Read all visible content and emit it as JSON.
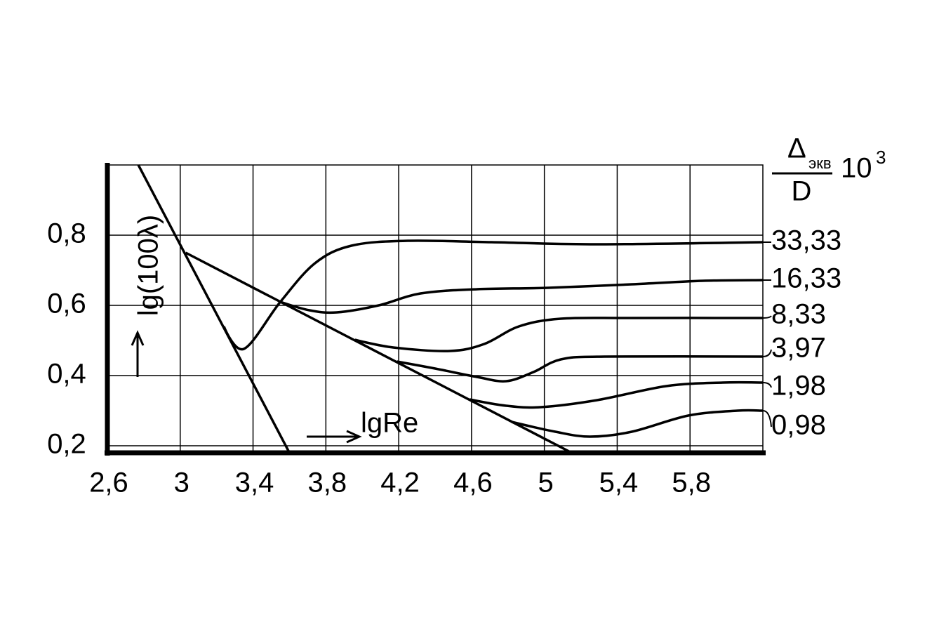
{
  "chart_data": {
    "type": "line",
    "y_label": "lg(100λ)",
    "x_label": "lgRe",
    "legend_title": {
      "numerator": "Δ",
      "subscript": "экв",
      "denominator": "D",
      "multiplier": "10",
      "exponent": "3"
    },
    "xlim": [
      2.6,
      6.2
    ],
    "ylim": [
      0.18,
      1.0
    ],
    "xticks": [
      {
        "value": 2.6,
        "label": "2,6"
      },
      3,
      {
        "value": 3.4,
        "label": "3,4"
      },
      {
        "value": 3.8,
        "label": "3,8"
      },
      {
        "value": 4.2,
        "label": "4,2"
      },
      {
        "value": 4.6,
        "label": "4,6"
      },
      5,
      {
        "value": 5.4,
        "label": "5,4"
      },
      {
        "value": 5.8,
        "label": "5,8"
      }
    ],
    "yticks": [
      {
        "value": 0.2,
        "label": "0,2"
      },
      {
        "value": 0.4,
        "label": "0,4"
      },
      {
        "value": 0.6,
        "label": "0,6"
      },
      {
        "value": 0.8,
        "label": "0,8"
      }
    ],
    "grid": true,
    "series": [
      {
        "color": "#000000",
        "x": [
          2.77,
          3.6
        ],
        "values": [
          1.0,
          0.18
        ]
      },
      {
        "color": "#000000",
        "x": [
          3.03,
          5.15
        ],
        "values": [
          0.75,
          0.18
        ]
      },
      {
        "name": "33,33",
        "color": "#000000",
        "x": [
          3.24,
          3.35,
          3.55,
          3.74,
          3.94,
          4.25,
          4.71,
          5.29,
          6.2
        ],
        "values": [
          0.54,
          0.476,
          0.61,
          0.72,
          0.77,
          0.784,
          0.78,
          0.774,
          0.78
        ]
      },
      {
        "name": "16,33",
        "color": "#000000",
        "x": [
          3.55,
          3.71,
          3.86,
          4.09,
          4.32,
          4.63,
          5.02,
          5.48,
          5.87,
          6.2
        ],
        "values": [
          0.61,
          0.586,
          0.58,
          0.6,
          0.634,
          0.646,
          0.65,
          0.66,
          0.67,
          0.672
        ]
      },
      {
        "name": "8,33",
        "color": "#000000",
        "x": [
          3.96,
          4.17,
          4.48,
          4.67,
          4.86,
          5.09,
          5.48,
          6.2
        ],
        "values": [
          0.502,
          0.48,
          0.47,
          0.49,
          0.54,
          0.562,
          0.564,
          0.564
        ]
      },
      {
        "name": "3,97",
        "color": "#000000",
        "x": [
          4.19,
          4.4,
          4.63,
          4.79,
          4.94,
          5.09,
          5.33,
          6.2
        ],
        "values": [
          0.44,
          0.42,
          0.396,
          0.384,
          0.41,
          0.446,
          0.454,
          0.454
        ]
      },
      {
        "name": "1,98",
        "color": "#000000",
        "x": [
          4.59,
          4.79,
          4.98,
          5.29,
          5.67,
          5.98,
          6.2
        ],
        "values": [
          0.332,
          0.314,
          0.31,
          0.33,
          0.37,
          0.38,
          0.38
        ]
      },
      {
        "name": "0,98",
        "color": "#000000",
        "x": [
          4.82,
          5.06,
          5.25,
          5.48,
          5.79,
          6.06,
          6.2
        ],
        "values": [
          0.268,
          0.24,
          0.226,
          0.24,
          0.286,
          0.3,
          0.3
        ]
      }
    ]
  }
}
